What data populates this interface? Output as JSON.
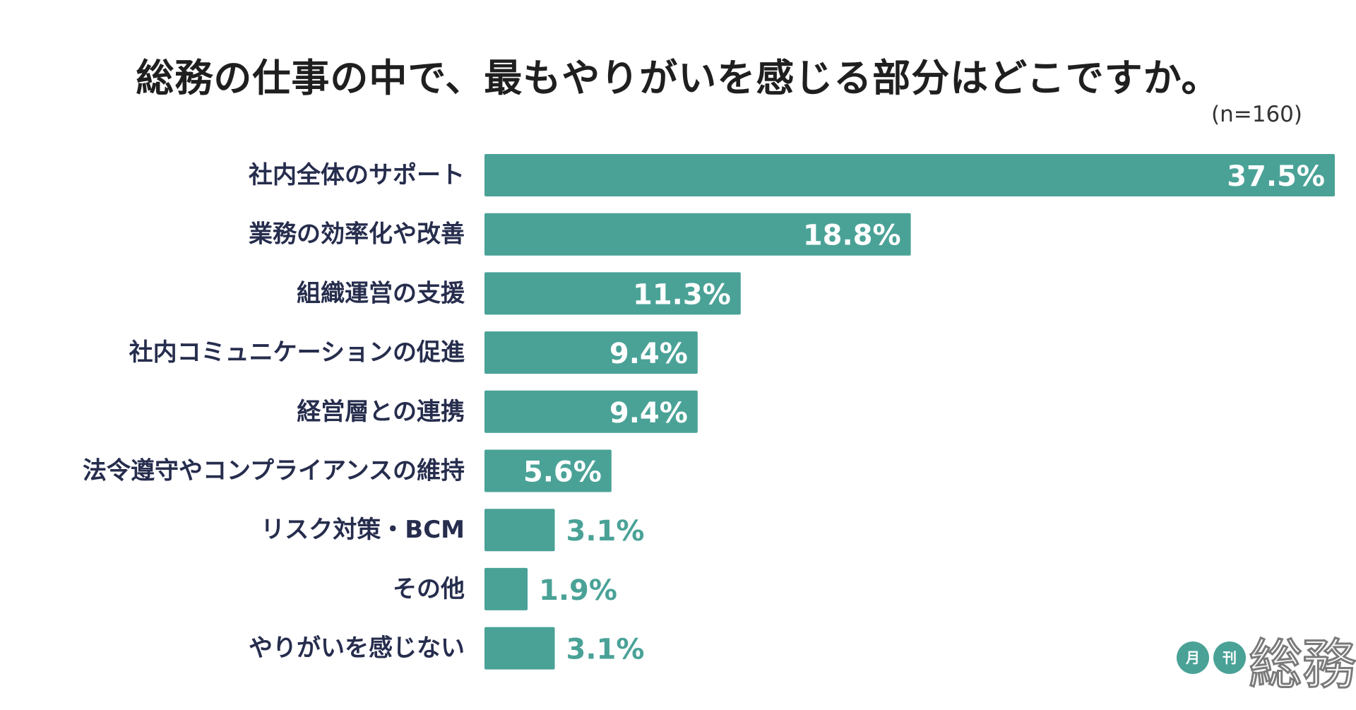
{
  "colors": {
    "bar": "#4aa297",
    "inside_value_text": "#ffffff",
    "outside_value_text": "#4aa297",
    "category_text": "#262d4d",
    "title_text": "#1f1f1f"
  },
  "chart_data": {
    "type": "bar",
    "orientation": "horizontal",
    "title": "総務の仕事の中で、最もやりがいを感じる部分はどこですか。",
    "note": "(n=160)",
    "categories": [
      "社内全体のサポート",
      "業務の効率化や改善",
      "組織運営の支援",
      "社内コミュニケーションの促進",
      "経営層との連携",
      "法令遵守やコンプライアンスの維持",
      "リスク対策・BCM",
      "その他",
      "やりがいを感じない"
    ],
    "values": [
      37.5,
      18.8,
      11.3,
      9.4,
      9.4,
      5.6,
      3.1,
      1.9,
      3.1
    ],
    "value_labels": [
      "37.5%",
      "18.8%",
      "11.3%",
      "9.4%",
      "9.4%",
      "5.6%",
      "3.1%",
      "1.9%",
      "3.1%"
    ],
    "unit": "%",
    "xlim": [
      0,
      37.5
    ],
    "grid": false,
    "legend": "none"
  },
  "logo": {
    "badge_1": "月",
    "badge_2": "刊",
    "wordmark": "総務"
  }
}
